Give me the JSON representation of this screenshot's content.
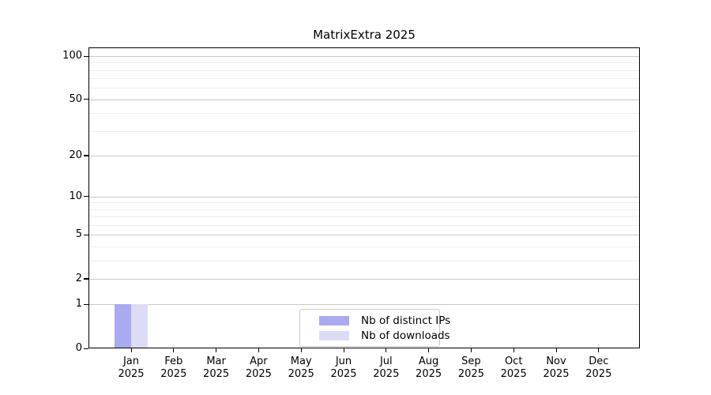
{
  "title": "MatrixExtra 2025",
  "chart_data": {
    "type": "bar",
    "title": "MatrixExtra 2025",
    "categories": [
      "Jan 2025",
      "Feb 2025",
      "Mar 2025",
      "Apr 2025",
      "May 2025",
      "Jun 2025",
      "Jul 2025",
      "Aug 2025",
      "Sep 2025",
      "Oct 2025",
      "Nov 2025",
      "Dec 2025"
    ],
    "series": [
      {
        "name": "Nb of distinct IPs",
        "color": "#aaaaf0",
        "values": [
          1,
          0,
          0,
          0,
          0,
          0,
          0,
          0,
          0,
          0,
          0,
          0
        ]
      },
      {
        "name": "Nb of downloads",
        "color": "#dcdcf6",
        "values": [
          1,
          0,
          0,
          0,
          0,
          0,
          0,
          0,
          0,
          0,
          0,
          0
        ]
      }
    ],
    "xlabel": "",
    "ylabel": "",
    "y_scale": "log1p",
    "y_ticks": [
      0,
      1,
      2,
      5,
      10,
      20,
      50,
      100
    ],
    "y_minor_ticks": [
      3,
      4,
      6,
      7,
      8,
      9,
      30,
      40,
      60,
      70,
      80,
      90
    ],
    "ylim": [
      0,
      113
    ],
    "grid": "horizontal",
    "legend_position": "lower center"
  },
  "colors": {
    "background": "#ffffff",
    "axis": "#000000",
    "grid_major": "#c9c9c9",
    "grid_minor": "#ededed",
    "bar_distinct_ips": "#aaaaf0",
    "bar_downloads": "#dcdcf6",
    "legend_border": "#cccccc"
  }
}
